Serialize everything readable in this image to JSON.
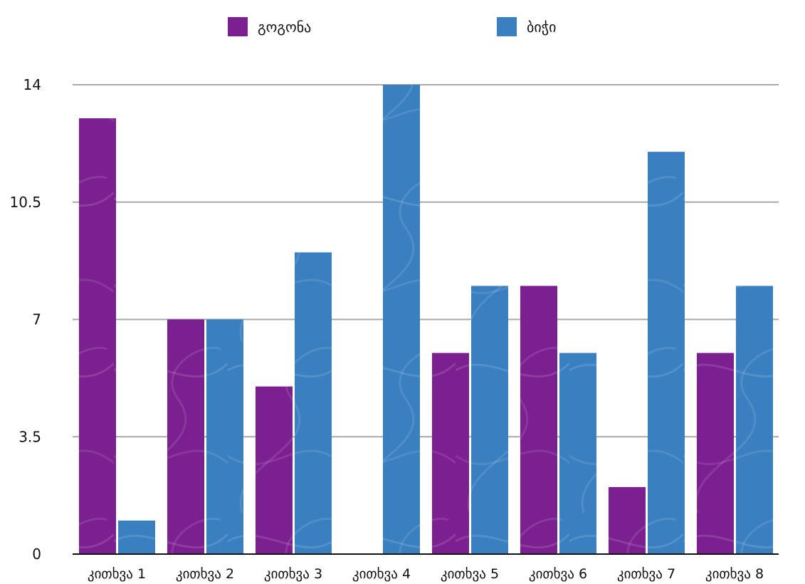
{
  "chart_data": {
    "type": "bar",
    "categories": [
      "კითხვა 1",
      "კითხვა 2",
      "კითხვა 3",
      "კითხვა 4",
      "კითხვა 5",
      "კითხვა 6",
      "კითხვა 7",
      "კითხვა 8"
    ],
    "series": [
      {
        "name": "გოგონა",
        "color": "#7b1f91",
        "values": [
          13,
          7,
          5,
          0,
          6,
          8,
          2,
          6
        ]
      },
      {
        "name": "ბიჭი",
        "color": "#3a7fc0",
        "values": [
          1,
          7,
          9,
          14,
          8,
          6,
          12,
          8
        ]
      }
    ],
    "y_ticks": [
      "0",
      "3.5",
      "7",
      "10.5",
      "14"
    ],
    "y_tick_values": [
      0,
      3.5,
      7,
      10.5,
      14
    ],
    "ylim": [
      0,
      14
    ],
    "grid": true,
    "legend_position": "top",
    "title": "",
    "xlabel": "",
    "ylabel": ""
  }
}
